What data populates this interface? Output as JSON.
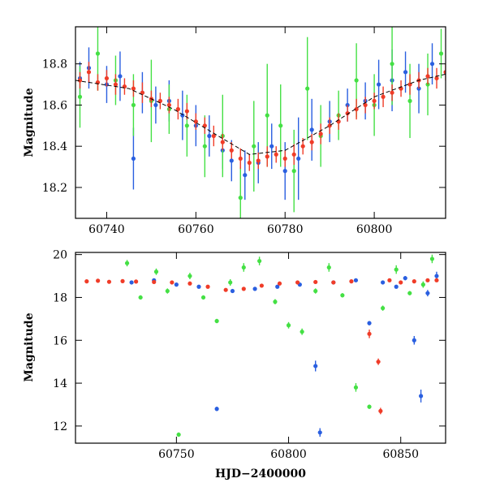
{
  "chart_data": [
    {
      "type": "scatter",
      "panel": "top",
      "ylabel": "Magnitude",
      "xlabel": "",
      "xlim": [
        60733,
        60816
      ],
      "ylim": [
        18.98,
        18.05
      ],
      "y_inverted": true,
      "x_ticks": [
        60740,
        60760,
        60780,
        60800
      ],
      "y_ticks": [
        18.2,
        18.4,
        18.6,
        18.8
      ],
      "trend": {
        "color": "#000000",
        "x": [
          60733,
          60745,
          60755,
          60765,
          60772,
          60780,
          60790,
          60800,
          60810,
          60816
        ],
        "y": [
          18.72,
          18.68,
          18.58,
          18.45,
          18.36,
          18.38,
          18.5,
          18.64,
          18.72,
          18.75
        ]
      },
      "series": [
        {
          "color": "#2a5fe0",
          "x": [
            60734,
            60736,
            60740,
            60743,
            60746,
            60748,
            60751,
            60754,
            60757,
            60760,
            60763,
            60766,
            60768,
            60771,
            60774,
            60777,
            60780,
            60783,
            60786,
            60790,
            60794,
            60798,
            60801,
            60804,
            60807,
            60810,
            60813
          ],
          "y": [
            18.73,
            18.78,
            18.7,
            18.74,
            18.34,
            18.66,
            18.6,
            18.62,
            18.55,
            18.5,
            18.45,
            18.38,
            18.33,
            18.26,
            18.32,
            18.4,
            18.28,
            18.34,
            18.48,
            18.52,
            18.6,
            18.62,
            18.7,
            18.72,
            18.76,
            18.68,
            18.8
          ],
          "err": [
            0.08,
            0.1,
            0.09,
            0.12,
            0.15,
            0.1,
            0.09,
            0.1,
            0.12,
            0.1,
            0.1,
            0.09,
            0.1,
            0.12,
            0.1,
            0.11,
            0.14,
            0.2,
            0.15,
            0.1,
            0.08,
            0.09,
            0.12,
            0.15,
            0.1,
            0.12,
            0.1
          ]
        },
        {
          "color": "#44e044",
          "x": [
            60734,
            60738,
            60742,
            60746,
            60750,
            60754,
            60758,
            60762,
            60766,
            60770,
            60773,
            60776,
            60779,
            60782,
            60785,
            60788,
            60792,
            60796,
            60800,
            60804,
            60808,
            60812,
            60815
          ],
          "y": [
            18.64,
            18.85,
            18.72,
            18.6,
            18.62,
            18.58,
            18.5,
            18.4,
            18.45,
            18.15,
            18.4,
            18.55,
            18.5,
            18.28,
            18.68,
            18.45,
            18.55,
            18.72,
            18.6,
            18.8,
            18.62,
            18.7,
            18.85
          ],
          "err": [
            0.15,
            0.18,
            0.12,
            0.15,
            0.2,
            0.12,
            0.15,
            0.15,
            0.2,
            0.15,
            0.22,
            0.25,
            0.2,
            0.2,
            0.25,
            0.15,
            0.12,
            0.18,
            0.15,
            0.2,
            0.18,
            0.15,
            0.12
          ]
        },
        {
          "color": "#f03c28",
          "x": [
            60734,
            60736,
            60738,
            60740,
            60742,
            60744,
            60746,
            60748,
            60750,
            60752,
            60754,
            60756,
            60758,
            60760,
            60762,
            60764,
            60766,
            60768,
            60770,
            60772,
            60774,
            60776,
            60778,
            60780,
            60782,
            60784,
            60786,
            60788,
            60790,
            60792,
            60794,
            60796,
            60798,
            60800,
            60802,
            60804,
            60806,
            60808,
            60810,
            60812,
            60814,
            60816
          ],
          "y": [
            18.72,
            18.76,
            18.71,
            18.73,
            18.7,
            18.69,
            18.68,
            18.66,
            18.63,
            18.62,
            18.6,
            18.58,
            18.57,
            18.52,
            18.5,
            18.45,
            18.42,
            18.38,
            18.34,
            18.32,
            18.33,
            18.35,
            18.36,
            18.34,
            18.36,
            18.4,
            18.42,
            18.46,
            18.5,
            18.52,
            18.56,
            18.58,
            18.6,
            18.62,
            18.64,
            18.66,
            18.68,
            18.7,
            18.72,
            18.74,
            18.73,
            18.76
          ],
          "err": [
            0.04,
            0.05,
            0.04,
            0.04,
            0.05,
            0.04,
            0.04,
            0.05,
            0.04,
            0.04,
            0.04,
            0.05,
            0.04,
            0.04,
            0.04,
            0.05,
            0.04,
            0.04,
            0.05,
            0.04,
            0.04,
            0.05,
            0.04,
            0.04,
            0.05,
            0.04,
            0.04,
            0.05,
            0.04,
            0.04,
            0.04,
            0.05,
            0.04,
            0.04,
            0.05,
            0.04,
            0.04,
            0.05,
            0.04,
            0.04,
            0.05,
            0.04
          ]
        }
      ]
    },
    {
      "type": "scatter",
      "panel": "bottom",
      "ylabel": "Magnitude",
      "xlabel": "HJD−2400000",
      "xlim": [
        60705,
        60870
      ],
      "ylim": [
        20.1,
        11.2
      ],
      "y_inverted": true,
      "x_ticks": [
        60750,
        60800,
        60850
      ],
      "y_ticks": [
        12,
        14,
        16,
        18,
        20
      ],
      "series": [
        {
          "color": "#44e044",
          "x": [
            60728,
            60734,
            60741,
            60746,
            60751,
            60756,
            60762,
            60768,
            60774,
            60780,
            60787,
            60794,
            60800,
            60806,
            60812,
            60818,
            60824,
            60830,
            60836,
            60842,
            60848,
            60854,
            60860,
            60864
          ],
          "y": [
            19.6,
            18.0,
            19.2,
            18.3,
            11.6,
            19.0,
            18.0,
            16.9,
            18.7,
            19.4,
            19.7,
            17.8,
            16.7,
            16.4,
            18.3,
            19.4,
            18.1,
            13.8,
            12.9,
            17.5,
            19.3,
            18.2,
            18.6,
            19.8
          ],
          "err": [
            0.15,
            0.1,
            0.15,
            0.12,
            0.1,
            0.15,
            0.1,
            0.1,
            0.15,
            0.2,
            0.2,
            0.12,
            0.15,
            0.15,
            0.12,
            0.2,
            0.1,
            0.2,
            0.1,
            0.12,
            0.2,
            0.1,
            0.15,
            0.2
          ]
        },
        {
          "color": "#2a5fe0",
          "x": [
            60730,
            60740,
            60750,
            60760,
            60768,
            60775,
            60785,
            60795,
            60805,
            60812,
            60814,
            60820,
            60830,
            60836,
            60842,
            60848,
            60852,
            60856,
            60859,
            60862,
            60866
          ],
          "y": [
            18.7,
            18.8,
            18.6,
            18.5,
            12.8,
            18.3,
            18.4,
            18.5,
            18.6,
            14.8,
            11.7,
            18.7,
            18.8,
            16.8,
            18.7,
            18.5,
            18.9,
            16.0,
            13.4,
            18.2,
            19.0
          ],
          "err": [
            0.05,
            0.05,
            0.05,
            0.05,
            0.1,
            0.05,
            0.05,
            0.05,
            0.05,
            0.25,
            0.2,
            0.05,
            0.05,
            0.1,
            0.05,
            0.05,
            0.1,
            0.2,
            0.3,
            0.15,
            0.2
          ]
        },
        {
          "color": "#f03c28",
          "x": [
            60710,
            60715,
            60720,
            60726,
            60732,
            60740,
            60748,
            60756,
            60764,
            60772,
            60780,
            60788,
            60796,
            60804,
            60812,
            60820,
            60828,
            60836,
            60840,
            60841,
            60845,
            60850,
            60856,
            60862,
            60866
          ],
          "y": [
            18.75,
            18.78,
            18.73,
            18.76,
            18.74,
            18.72,
            18.7,
            18.65,
            18.5,
            18.35,
            18.4,
            18.55,
            18.65,
            18.7,
            18.72,
            18.7,
            18.75,
            16.3,
            15.0,
            12.7,
            18.8,
            18.7,
            18.75,
            18.8,
            18.8
          ],
          "err": [
            0.05,
            0.05,
            0.05,
            0.05,
            0.05,
            0.05,
            0.05,
            0.05,
            0.05,
            0.05,
            0.05,
            0.05,
            0.05,
            0.05,
            0.05,
            0.05,
            0.05,
            0.2,
            0.15,
            0.15,
            0.05,
            0.05,
            0.05,
            0.05,
            0.05
          ]
        }
      ]
    }
  ]
}
